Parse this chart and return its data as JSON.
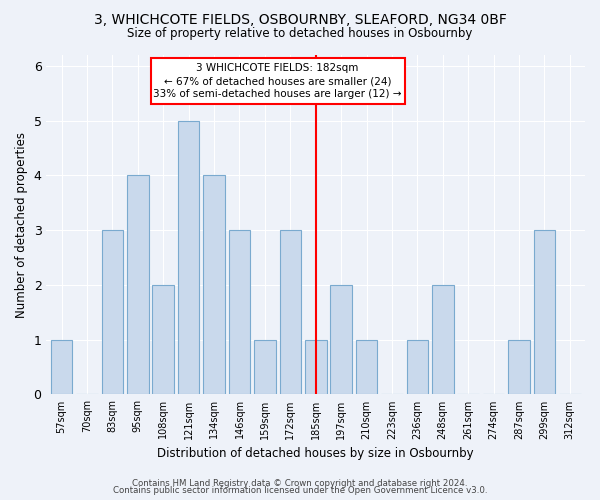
{
  "title": "3, WHICHCOTE FIELDS, OSBOURNBY, SLEAFORD, NG34 0BF",
  "subtitle": "Size of property relative to detached houses in Osbournby",
  "xlabel": "Distribution of detached houses by size in Osbournby",
  "ylabel": "Number of detached properties",
  "categories": [
    "57sqm",
    "70sqm",
    "83sqm",
    "95sqm",
    "108sqm",
    "121sqm",
    "134sqm",
    "146sqm",
    "159sqm",
    "172sqm",
    "185sqm",
    "197sqm",
    "210sqm",
    "223sqm",
    "236sqm",
    "248sqm",
    "261sqm",
    "274sqm",
    "287sqm",
    "299sqm",
    "312sqm"
  ],
  "values": [
    1,
    0,
    3,
    4,
    2,
    5,
    4,
    3,
    1,
    3,
    1,
    2,
    1,
    0,
    1,
    2,
    0,
    0,
    1,
    3,
    0
  ],
  "bar_color": "#c9d9ec",
  "bar_edge_color": "#7aaacf",
  "reference_line_x_label": "185sqm",
  "reference_line_color": "red",
  "annotation_line1": "3 WHICHCOTE FIELDS: 182sqm",
  "annotation_line2": "← 67% of detached houses are smaller (24)",
  "annotation_line3": "33% of semi-detached houses are larger (12) →",
  "ylim": [
    0,
    6.2
  ],
  "yticks": [
    0,
    1,
    2,
    3,
    4,
    5,
    6
  ],
  "footer1": "Contains HM Land Registry data © Crown copyright and database right 2024.",
  "footer2": "Contains public sector information licensed under the Open Government Licence v3.0.",
  "bg_color": "#eef2f9"
}
